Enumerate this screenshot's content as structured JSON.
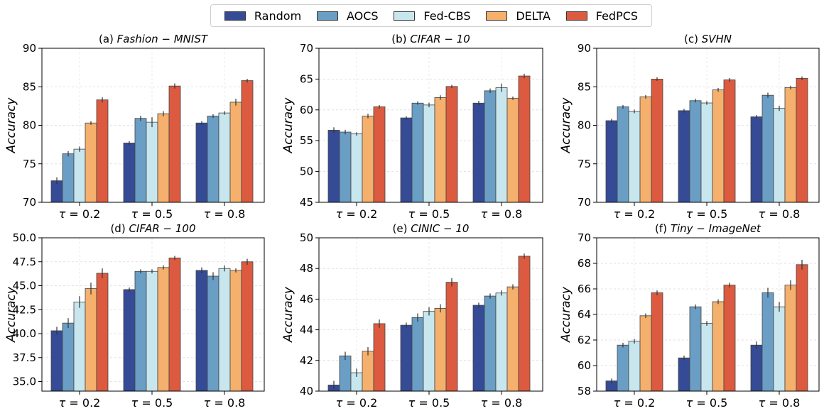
{
  "legend": [
    {
      "name": "Random",
      "color": "#354b96"
    },
    {
      "name": "AOCS",
      "color": "#6a9ec4"
    },
    {
      "name": "Fed-CBS",
      "color": "#c8e6ee"
    },
    {
      "name": "DELTA",
      "color": "#f4b06c"
    },
    {
      "name": "FedPCS",
      "color": "#dc5a3f"
    }
  ],
  "chart_data": [
    {
      "type": "bar",
      "title_prefix": "(a) ",
      "title_name": "Fashion − MNIST",
      "xlabel": "",
      "ylabel": "Accuracy",
      "categories": [
        "τ = 0.2",
        "τ = 0.5",
        "τ = 0.8"
      ],
      "ylim": [
        70,
        90
      ],
      "yticks": [
        "70",
        "75",
        "80",
        "85",
        "90"
      ],
      "series": [
        {
          "name": "Random",
          "values": [
            72.8,
            77.7,
            80.3
          ],
          "errors": [
            0.3,
            0.1,
            0.1
          ]
        },
        {
          "name": "AOCS",
          "values": [
            76.3,
            80.9,
            81.2
          ],
          "errors": [
            0.2,
            0.2,
            0.1
          ]
        },
        {
          "name": "Fed-CBS",
          "values": [
            76.9,
            80.4,
            81.6
          ],
          "errors": [
            0.2,
            0.5,
            0.1
          ]
        },
        {
          "name": "DELTA",
          "values": [
            80.3,
            81.5,
            83.0
          ],
          "errors": [
            0.1,
            0.2,
            0.3
          ]
        },
        {
          "name": "FedPCS",
          "values": [
            83.3,
            85.1,
            85.8
          ],
          "errors": [
            0.2,
            0.2,
            0.1
          ]
        }
      ]
    },
    {
      "type": "bar",
      "title_prefix": "(b) ",
      "title_name": "CIFAR − 10",
      "xlabel": "",
      "ylabel": "Accuracy",
      "categories": [
        "τ = 0.2",
        "τ = 0.5",
        "τ = 0.8"
      ],
      "ylim": [
        45,
        70
      ],
      "yticks": [
        "45",
        "50",
        "55",
        "60",
        "65",
        "70"
      ],
      "series": [
        {
          "name": "Random",
          "values": [
            56.7,
            58.7,
            61.1
          ],
          "errors": [
            0.3,
            0.1,
            0.2
          ]
        },
        {
          "name": "AOCS",
          "values": [
            56.4,
            61.1,
            63.1
          ],
          "errors": [
            0.2,
            0.1,
            0.2
          ]
        },
        {
          "name": "Fed-CBS",
          "values": [
            56.1,
            60.8,
            63.6
          ],
          "errors": [
            0.1,
            0.2,
            0.5
          ]
        },
        {
          "name": "DELTA",
          "values": [
            59.0,
            62.0,
            61.9
          ],
          "errors": [
            0.2,
            0.2,
            0.1
          ]
        },
        {
          "name": "FedPCS",
          "values": [
            60.5,
            63.8,
            65.5
          ],
          "errors": [
            0.1,
            0.1,
            0.2
          ]
        }
      ]
    },
    {
      "type": "bar",
      "title_prefix": "(c) ",
      "title_name": "SVHN",
      "xlabel": "",
      "ylabel": "Accuracy",
      "categories": [
        "τ = 0.2",
        "τ = 0.5",
        "τ = 0.8"
      ],
      "ylim": [
        70,
        90
      ],
      "yticks": [
        "70",
        "75",
        "80",
        "85",
        "90"
      ],
      "series": [
        {
          "name": "Random",
          "values": [
            80.6,
            81.9,
            81.1
          ],
          "errors": [
            0.1,
            0.1,
            0.1
          ]
        },
        {
          "name": "AOCS",
          "values": [
            82.4,
            83.2,
            83.9
          ],
          "errors": [
            0.1,
            0.1,
            0.2
          ]
        },
        {
          "name": "Fed-CBS",
          "values": [
            81.8,
            82.9,
            82.2
          ],
          "errors": [
            0.1,
            0.1,
            0.2
          ]
        },
        {
          "name": "DELTA",
          "values": [
            83.7,
            84.6,
            84.9
          ],
          "errors": [
            0.1,
            0.1,
            0.1
          ]
        },
        {
          "name": "FedPCS",
          "values": [
            86.0,
            85.9,
            86.1
          ],
          "errors": [
            0.1,
            0.1,
            0.1
          ]
        }
      ]
    },
    {
      "type": "bar",
      "title_prefix": "(d) ",
      "title_name": "CIFAR − 100",
      "xlabel": "",
      "ylabel": "Accuracy",
      "categories": [
        "τ = 0.2",
        "τ = 0.5",
        "τ = 0.8"
      ],
      "ylim": [
        34,
        50
      ],
      "yticks": [
        "35.0",
        "37.5",
        "40.0",
        "42.5",
        "45.0",
        "47.5",
        "50.0"
      ],
      "ytick_values": [
        35,
        37.5,
        40,
        42.5,
        45,
        47.5,
        50
      ],
      "series": [
        {
          "name": "Random",
          "values": [
            40.3,
            44.6,
            46.6
          ],
          "errors": [
            0.3,
            0.1,
            0.2
          ]
        },
        {
          "name": "AOCS",
          "values": [
            41.1,
            46.5,
            46.0
          ],
          "errors": [
            0.4,
            0.1,
            0.3
          ]
        },
        {
          "name": "Fed-CBS",
          "values": [
            43.3,
            46.5,
            46.8
          ],
          "errors": [
            0.5,
            0.1,
            0.2
          ]
        },
        {
          "name": "DELTA",
          "values": [
            44.7,
            46.9,
            46.6
          ],
          "errors": [
            0.5,
            0.1,
            0.1
          ]
        },
        {
          "name": "FedPCS",
          "values": [
            46.3,
            47.9,
            47.5
          ],
          "errors": [
            0.4,
            0.1,
            0.2
          ]
        }
      ]
    },
    {
      "type": "bar",
      "title_prefix": "(e) ",
      "title_name": "CINIC − 10",
      "xlabel": "",
      "ylabel": "Accuracy",
      "categories": [
        "τ = 0.2",
        "τ = 0.5",
        "τ = 0.8"
      ],
      "ylim": [
        40,
        50
      ],
      "yticks": [
        "40",
        "42",
        "44",
        "46",
        "48",
        "50"
      ],
      "series": [
        {
          "name": "Random",
          "values": [
            40.4,
            44.3,
            45.6
          ],
          "errors": [
            0.2,
            0.1,
            0.1
          ]
        },
        {
          "name": "AOCS",
          "values": [
            42.3,
            44.8,
            46.2
          ],
          "errors": [
            0.2,
            0.2,
            0.1
          ]
        },
        {
          "name": "Fed-CBS",
          "values": [
            41.2,
            45.2,
            46.4
          ],
          "errors": [
            0.2,
            0.2,
            0.1
          ]
        },
        {
          "name": "DELTA",
          "values": [
            42.6,
            45.4,
            46.8
          ],
          "errors": [
            0.2,
            0.2,
            0.1
          ]
        },
        {
          "name": "FedPCS",
          "values": [
            44.4,
            47.1,
            48.8
          ],
          "errors": [
            0.2,
            0.2,
            0.1
          ]
        }
      ]
    },
    {
      "type": "bar",
      "title_prefix": "(f) ",
      "title_name": "Tiny − ImageNet",
      "xlabel": "",
      "ylabel": "Accuracy",
      "categories": [
        "τ = 0.2",
        "τ = 0.5",
        "τ = 0.8"
      ],
      "ylim": [
        58,
        70
      ],
      "yticks": [
        "58",
        "60",
        "62",
        "64",
        "66",
        "68",
        "70"
      ],
      "series": [
        {
          "name": "Random",
          "values": [
            58.8,
            60.6,
            61.6
          ],
          "errors": [
            0.1,
            0.1,
            0.2
          ]
        },
        {
          "name": "AOCS",
          "values": [
            61.6,
            64.6,
            65.7
          ],
          "errors": [
            0.1,
            0.1,
            0.3
          ]
        },
        {
          "name": "Fed-CBS",
          "values": [
            61.9,
            63.3,
            64.6
          ],
          "errors": [
            0.1,
            0.1,
            0.3
          ]
        },
        {
          "name": "DELTA",
          "values": [
            63.9,
            65.0,
            66.3
          ],
          "errors": [
            0.1,
            0.1,
            0.3
          ]
        },
        {
          "name": "FedPCS",
          "values": [
            65.7,
            66.3,
            67.9
          ],
          "errors": [
            0.1,
            0.1,
            0.3
          ]
        }
      ]
    }
  ]
}
